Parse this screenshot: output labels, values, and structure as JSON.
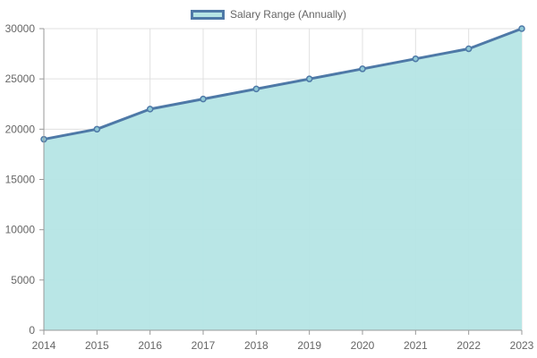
{
  "chart_data": {
    "type": "area",
    "x": [
      "2014",
      "2015",
      "2016",
      "2017",
      "2018",
      "2019",
      "2020",
      "2021",
      "2022",
      "2023"
    ],
    "series": [
      {
        "name": "Salary Range (Annually)",
        "values": [
          19000,
          20000,
          22000,
          23000,
          24000,
          25000,
          26000,
          27000,
          28000,
          30000
        ]
      }
    ],
    "ylim": [
      0,
      30000
    ],
    "yticks": [
      "0",
      "5000",
      "10000",
      "15000",
      "20000",
      "25000",
      "30000"
    ],
    "grid": true,
    "legend_position": "top-center",
    "colors": {
      "line": "#4e79a7",
      "fill": "#b5e5e5",
      "grid": "#e0e0e0",
      "axis": "#999999",
      "text": "#666666"
    }
  }
}
